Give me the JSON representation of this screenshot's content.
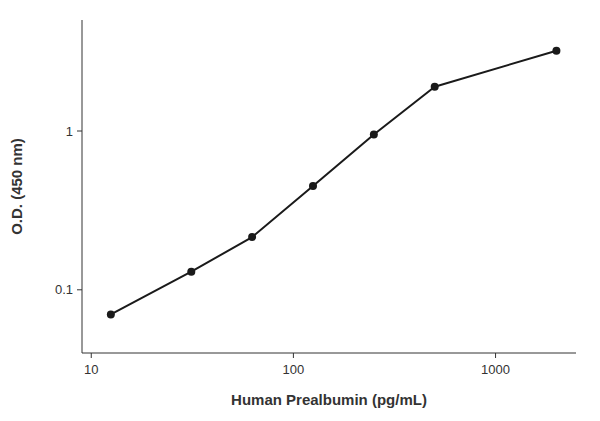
{
  "chart_data": {
    "type": "line",
    "x": [
      12.5,
      31.25,
      62.5,
      125,
      250,
      500,
      2000
    ],
    "values": [
      0.07,
      0.13,
      0.215,
      0.45,
      0.95,
      1.9,
      3.2
    ],
    "xlabel": "Human Prealbumin (pg/mL)",
    "ylabel": "O.D. (450 nm)",
    "xlim": [
      9,
      2500
    ],
    "ylim": [
      0.04,
      5.0
    ],
    "xticks": [
      10,
      100,
      1000
    ],
    "yticks": [
      0.1,
      1
    ],
    "log": true,
    "grid": false,
    "color": "#1a1a1a",
    "marker": "circle"
  }
}
